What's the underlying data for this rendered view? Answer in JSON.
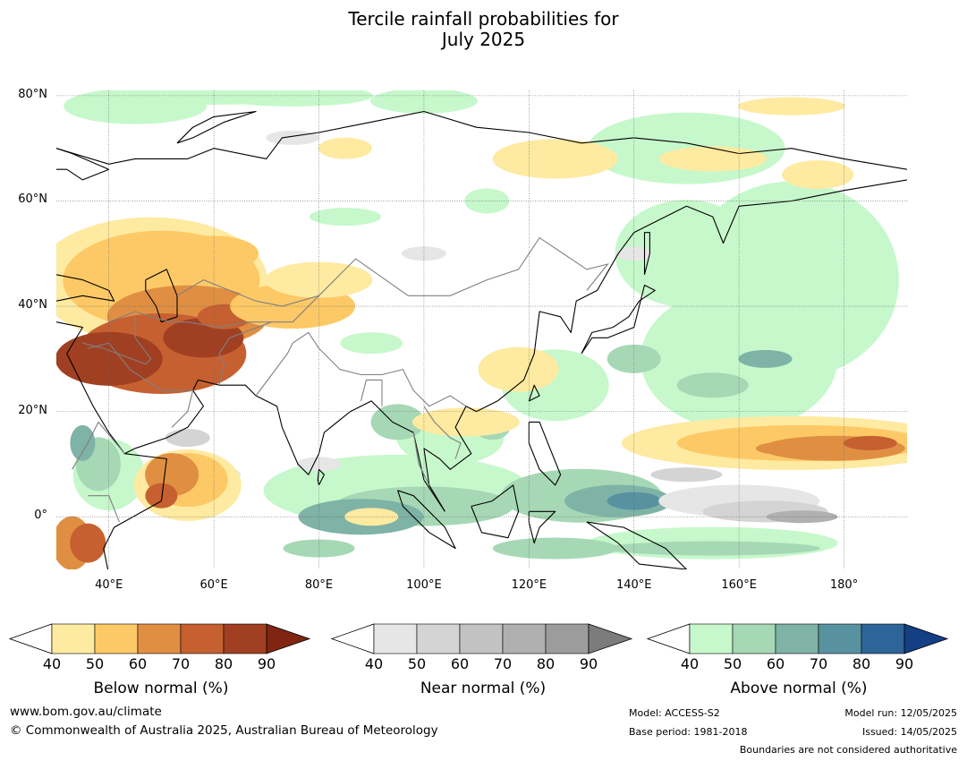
{
  "title": {
    "line1": "Tercile rainfall probabilities for",
    "line2": "July 2025"
  },
  "map": {
    "lat_labels": [
      "80°N",
      "60°N",
      "40°N",
      "20°N",
      "0°"
    ],
    "lon_labels": [
      "40°E",
      "60°E",
      "80°E",
      "100°E",
      "120°E",
      "140°E",
      "160°E",
      "180°"
    ],
    "extent": {
      "lon": [
        30,
        192
      ],
      "lat": [
        -10,
        81
      ]
    }
  },
  "colorbars": [
    {
      "title": "Below normal (%)",
      "ticks": [
        "40",
        "50",
        "60",
        "70",
        "80",
        "90"
      ],
      "colors": [
        "#ffffff",
        "#feeaa0",
        "#fdc966",
        "#e08f42",
        "#c66030",
        "#a13f22",
        "#7f2512"
      ]
    },
    {
      "title": "Near normal (%)",
      "ticks": [
        "40",
        "50",
        "60",
        "70",
        "80",
        "90"
      ],
      "colors": [
        "#ffffff",
        "#e6e6e6",
        "#d4d4d4",
        "#c2c2c2",
        "#b0b0b0",
        "#9c9c9c",
        "#7c7c7c"
      ]
    },
    {
      "title": "Above normal (%)",
      "ticks": [
        "40",
        "50",
        "60",
        "70",
        "80",
        "90"
      ],
      "colors": [
        "#ffffff",
        "#c6f8cb",
        "#a6d8b5",
        "#7eb3a6",
        "#5892a0",
        "#2d6599",
        "#143f84"
      ]
    }
  ],
  "footer": {
    "site": "www.bom.gov.au/climate",
    "copyright": "© Commonwealth of Australia 2025, Australian Bureau of Meteorology",
    "model": "Model: ACCESS-S2",
    "base_period": "Base period: 1981-2018",
    "model_run": "Model run: 12/05/2025",
    "issued": "Issued: 14/05/2025",
    "disclaimer": "Boundaries are not considered authoritative"
  }
}
